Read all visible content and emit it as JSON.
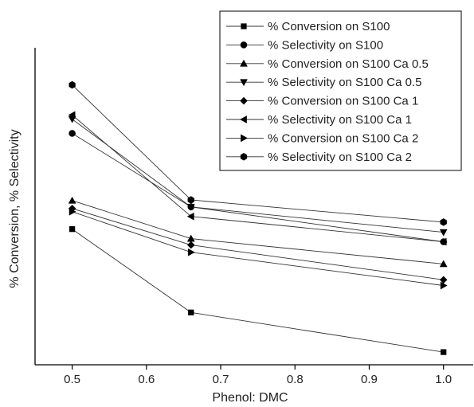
{
  "chart_data": {
    "type": "line",
    "xlabel": "Phenol: DMC",
    "ylabel": "% Conversion, % Selectivity",
    "xlim": [
      0.45,
      1.04
    ],
    "xticks": [
      0.5,
      0.6,
      0.7,
      0.8,
      0.9,
      1.0
    ],
    "xtick_labels": [
      "0.5",
      "0.6",
      "0.7",
      "0.8",
      "0.9",
      "1.0"
    ],
    "yticks_labeled": false,
    "ylim": [
      0,
      100
    ],
    "grid": false,
    "legend_position": "top-right",
    "x": [
      0.5,
      0.66,
      1.0
    ],
    "series": [
      {
        "name": "% Conversion on S100",
        "marker": "square",
        "values": [
          42.8,
          16.5,
          4.0
        ]
      },
      {
        "name": "% Selectivity on S100",
        "marker": "circle",
        "values": [
          73.0,
          49.8,
          38.8
        ]
      },
      {
        "name": "% Conversion on S100 Ca 0.5",
        "marker": "triangle-up",
        "values": [
          51.8,
          39.8,
          31.8
        ]
      },
      {
        "name": "% Selectivity on S100 Ca 0.5",
        "marker": "triangle-down",
        "values": [
          77.5,
          49.8,
          41.8
        ]
      },
      {
        "name": "% Conversion on S100 Ca 1",
        "marker": "diamond",
        "values": [
          49.3,
          37.8,
          26.8
        ]
      },
      {
        "name": "% Selectivity on S100 Ca 1",
        "marker": "triangle-left",
        "values": [
          78.8,
          46.8,
          38.8
        ]
      },
      {
        "name": "% Conversion on S100 Ca 2",
        "marker": "triangle-right",
        "values": [
          48.3,
          35.5,
          25.0
        ]
      },
      {
        "name": "% Selectivity on S100 Ca 2",
        "marker": "hexagon",
        "values": [
          88.3,
          52.0,
          45.0
        ]
      }
    ]
  }
}
